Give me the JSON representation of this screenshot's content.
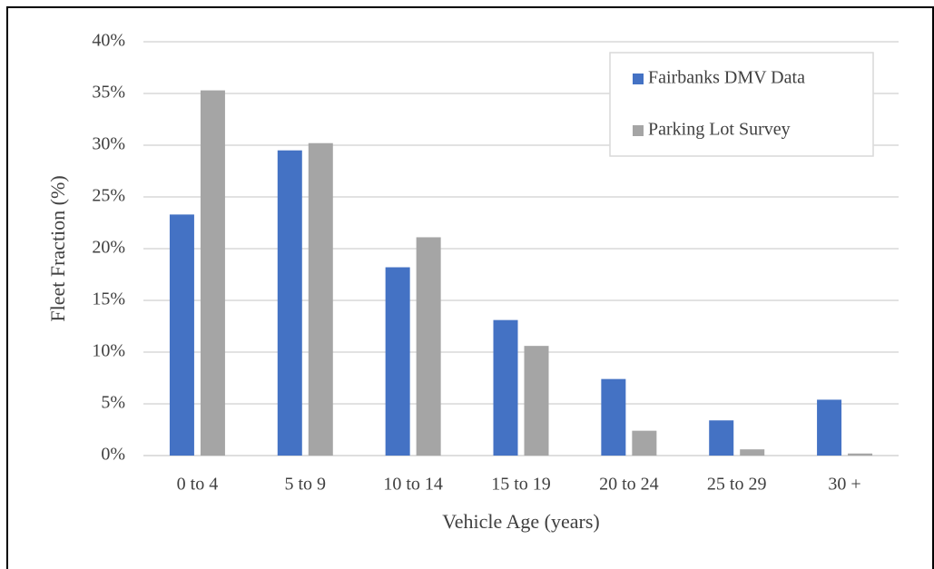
{
  "chart_data": {
    "type": "bar",
    "xlabel": "Vehicle Age (years)",
    "ylabel": "Fleet Fraction (%)",
    "categories": [
      "0 to 4",
      "5 to 9",
      "10 to 14",
      "15 to 19",
      "20 to 24",
      "25 to 29",
      "30 +"
    ],
    "series": [
      {
        "name": "Fairbanks DMV Data",
        "color": "#4472c4",
        "values": [
          23.3,
          29.5,
          18.2,
          13.1,
          7.4,
          3.4,
          5.4
        ]
      },
      {
        "name": "Parking Lot Survey",
        "color": "#a5a5a5",
        "values": [
          35.3,
          30.2,
          21.1,
          10.6,
          2.4,
          0.6,
          0.2
        ]
      }
    ],
    "ylim": [
      0,
      40
    ],
    "yticks": [
      {
        "value": 0,
        "label": "0%"
      },
      {
        "value": 5,
        "label": "5%"
      },
      {
        "value": 10,
        "label": "10%"
      },
      {
        "value": 15,
        "label": "15%"
      },
      {
        "value": 20,
        "label": "20%"
      },
      {
        "value": 25,
        "label": "25%"
      },
      {
        "value": 30,
        "label": "30%"
      },
      {
        "value": 35,
        "label": "35%"
      },
      {
        "value": 40,
        "label": "40%"
      }
    ],
    "grid": true,
    "legend": "upper right"
  }
}
